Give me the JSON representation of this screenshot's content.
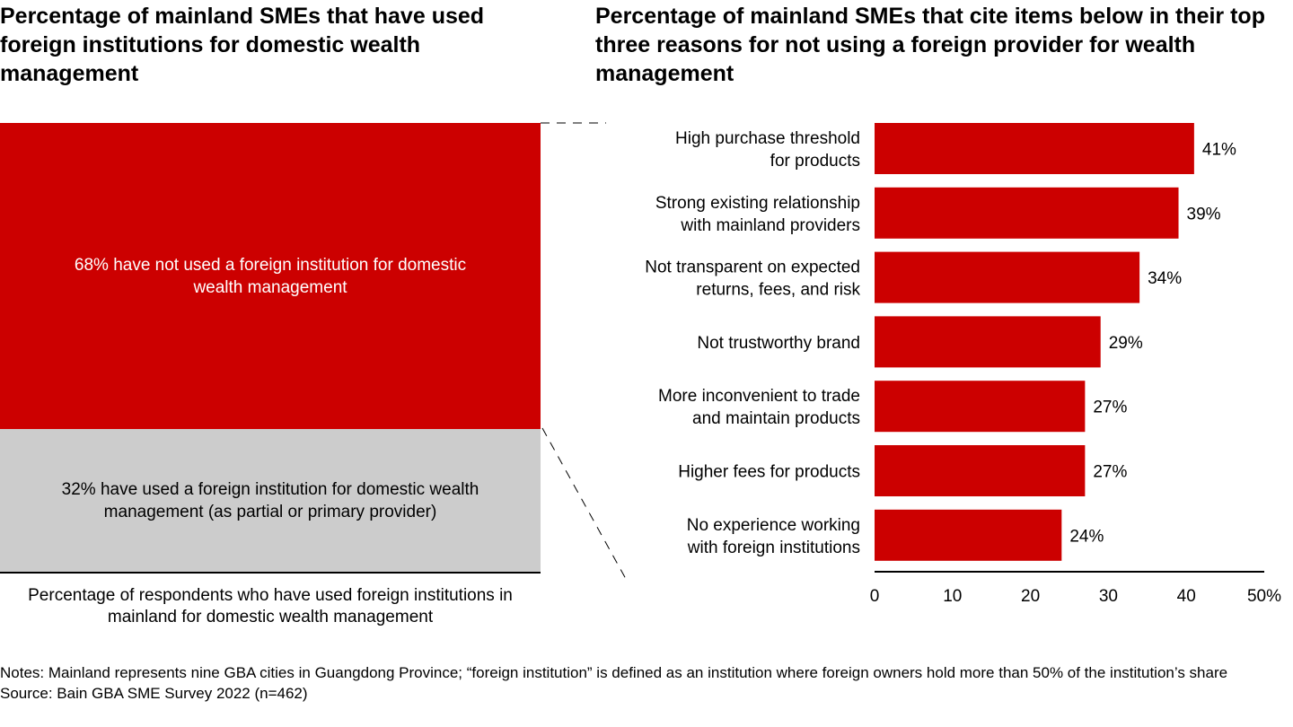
{
  "left_panel": {
    "title": "Percentage of mainland SMEs that have used foreign institutions for domestic wealth management",
    "caption": "Percentage of respondents who have used foreign institutions in mainland for domestic wealth management"
  },
  "right_panel": {
    "title": "Percentage of mainland SMEs that cite items below in their top three reasons for not using a foreign provider for wealth management"
  },
  "colors": {
    "accent": "#cc0000",
    "muted": "#cccccc",
    "text": "#000000"
  },
  "chart_data": [
    {
      "type": "bar",
      "orientation": "stacked-100",
      "title": "Percentage of mainland SMEs that have used foreign institutions for domestic wealth management",
      "xlabel": "Percentage of respondents who have used foreign institutions in mainland for domestic wealth management",
      "segments": [
        {
          "label": "68% have not used a foreign institution for domestic wealth management",
          "value": 68,
          "color": "#cc0000"
        },
        {
          "label": "32% have used a foreign institution for domestic wealth management (as partial or primary provider)",
          "value": 32,
          "color": "#cccccc"
        }
      ]
    },
    {
      "type": "bar",
      "orientation": "horizontal",
      "title": "Percentage of mainland SMEs that cite items below in their top three reasons for not using a foreign provider for wealth management",
      "categories": [
        [
          "High purchase threshold",
          "for products"
        ],
        [
          "Strong existing relationship",
          "with mainland providers"
        ],
        [
          "Not transparent on expected",
          "returns, fees, and risk"
        ],
        [
          "Not trustworthy brand"
        ],
        [
          "More inconvenient to trade",
          "and maintain products"
        ],
        [
          "Higher fees for products"
        ],
        [
          "No experience working",
          "with foreign institutions"
        ]
      ],
      "values": [
        41,
        39,
        34,
        29,
        27,
        27,
        24
      ],
      "value_labels": [
        "41%",
        "39%",
        "34%",
        "29%",
        "27%",
        "27%",
        "24%"
      ],
      "xlim": [
        0,
        50
      ],
      "xticks": [
        "0",
        "10",
        "20",
        "30",
        "40",
        "50%"
      ],
      "color": "#cc0000",
      "grid": false
    }
  ],
  "notes": {
    "line1": "Notes: Mainland represents nine GBA cities in Guangdong Province; “foreign institution” is defined as an institution where foreign owners hold more than 50% of the institution’s share",
    "source": "Source: Bain GBA SME Survey 2022 (n=462)"
  }
}
